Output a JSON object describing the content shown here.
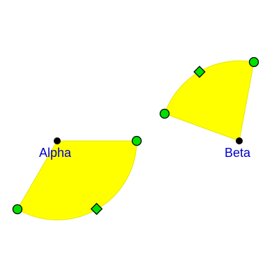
{
  "colors": {
    "sector_fill": "#ffff00",
    "sector_stroke": "#e0e000",
    "point_green": "#00e000",
    "point_black": "#000000",
    "label": "#0000cc",
    "outline": "#000000"
  },
  "sectors": [
    {
      "id": "alpha",
      "label": "Alpha"
    },
    {
      "id": "beta",
      "label": "Beta"
    }
  ]
}
